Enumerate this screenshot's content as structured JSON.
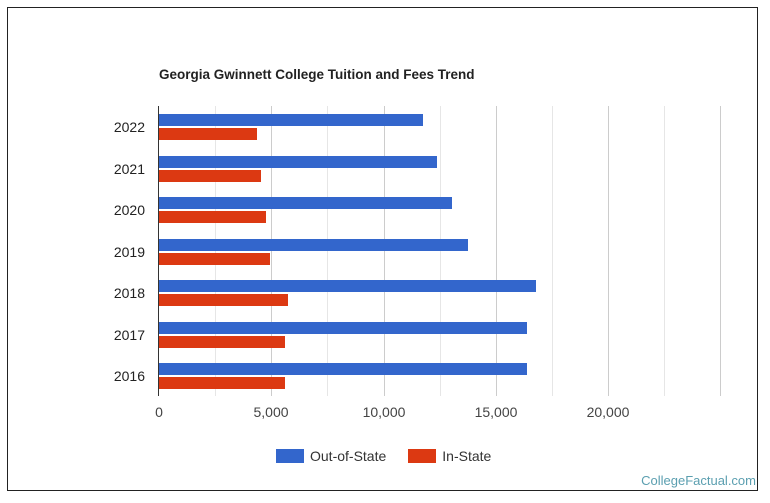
{
  "chart_data": {
    "type": "bar",
    "orientation": "horizontal",
    "title": "Georgia Gwinnett College Tuition and Fees Trend",
    "xlabel": "",
    "ylabel": "",
    "xlim": [
      0,
      20000
    ],
    "x_ticks": [
      "0",
      "5,000",
      "10,000",
      "15,000",
      "20,000"
    ],
    "grid": true,
    "legend_position": "bottom",
    "categories": [
      "2022",
      "2021",
      "2020",
      "2019",
      "2018",
      "2017",
      "2016"
    ],
    "series": [
      {
        "name": "Out-of-State",
        "color": "#3366cc",
        "values": [
          11740,
          12370,
          13030,
          13750,
          16790,
          16380,
          16380
        ]
      },
      {
        "name": "In-State",
        "color": "#dc3912",
        "values": [
          4375,
          4550,
          4780,
          4960,
          5760,
          5630,
          5630
        ]
      }
    ]
  },
  "legend": {
    "out_of_state": "Out-of-State",
    "in_state": "In-State"
  },
  "credit": "CollegeFactual.com"
}
